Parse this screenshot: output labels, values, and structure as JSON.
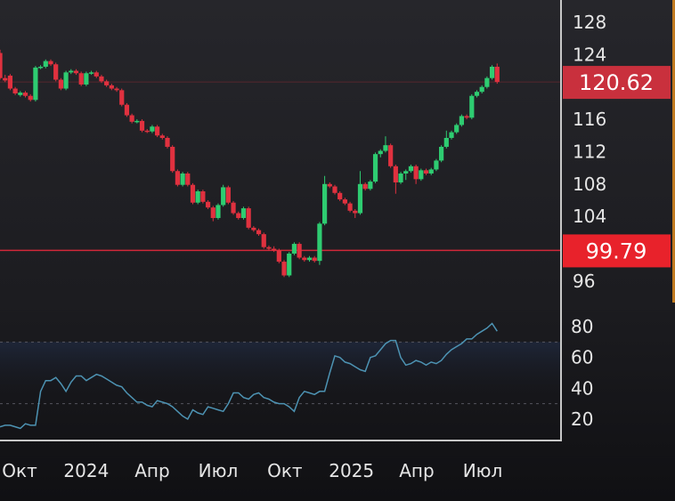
{
  "chart_data": [
    {
      "type": "candlestick",
      "title": "",
      "interval": "week",
      "y_ticks": [
        128,
        124,
        116,
        112,
        108,
        104,
        96
      ],
      "ylim": [
        94,
        130
      ],
      "x_range": [
        "2023-09-04",
        "2025-07-21"
      ],
      "x_ticks": [
        {
          "date": "2023-10-01",
          "label": "Окт"
        },
        {
          "date": "2024-01-01",
          "label": "2024"
        },
        {
          "date": "2024-04-01",
          "label": "Апр"
        },
        {
          "date": "2024-07-01",
          "label": "Июл"
        },
        {
          "date": "2024-10-01",
          "label": "Окт"
        },
        {
          "date": "2025-01-01",
          "label": "2025"
        },
        {
          "date": "2025-04-01",
          "label": "Апр"
        },
        {
          "date": "2025-07-01",
          "label": "Июл"
        }
      ],
      "price_tags": [
        {
          "value": 120.62,
          "label": "120.62",
          "color": "#c9303d"
        },
        {
          "value": 99.79,
          "label": "99.79",
          "color": "#e8222b"
        }
      ],
      "horizontal_lines": [
        99.79
      ],
      "colors": {
        "up": "#2ecc71",
        "down": "#e0313f",
        "rsi": "#4d93b3",
        "background": "#1e1e22",
        "border": "#c8c8c8"
      },
      "dates": [
        "2023-09-04",
        "2023-09-11",
        "2023-09-18",
        "2023-09-25",
        "2023-10-02",
        "2023-10-09",
        "2023-10-16",
        "2023-10-23",
        "2023-10-30",
        "2023-11-06",
        "2023-11-13",
        "2023-11-20",
        "2023-11-27",
        "2023-12-04",
        "2023-12-11",
        "2023-12-18",
        "2023-12-25",
        "2024-01-01",
        "2024-01-08",
        "2024-01-15",
        "2024-01-22",
        "2024-01-29",
        "2024-02-05",
        "2024-02-12",
        "2024-02-19",
        "2024-02-26",
        "2024-03-04",
        "2024-03-11",
        "2024-03-18",
        "2024-03-25",
        "2024-04-01",
        "2024-04-08",
        "2024-04-15",
        "2024-04-22",
        "2024-04-29",
        "2024-05-06",
        "2024-05-13",
        "2024-05-20",
        "2024-05-27",
        "2024-06-03",
        "2024-06-10",
        "2024-06-17",
        "2024-06-24",
        "2024-07-01",
        "2024-07-08",
        "2024-07-15",
        "2024-07-22",
        "2024-07-29",
        "2024-08-05",
        "2024-08-12",
        "2024-08-19",
        "2024-08-26",
        "2024-09-02",
        "2024-09-09",
        "2024-09-16",
        "2024-09-23",
        "2024-09-30",
        "2024-10-07",
        "2024-10-14",
        "2024-10-21",
        "2024-10-28",
        "2024-11-04",
        "2024-11-11",
        "2024-11-18",
        "2024-11-25",
        "2024-12-02",
        "2024-12-09",
        "2024-12-16",
        "2024-12-23",
        "2024-12-30",
        "2025-01-06",
        "2025-01-13",
        "2025-01-20",
        "2025-01-27",
        "2025-02-03",
        "2025-02-10",
        "2025-02-17",
        "2025-02-24",
        "2025-03-03",
        "2025-03-10",
        "2025-03-17",
        "2025-03-24",
        "2025-03-31",
        "2025-04-07",
        "2025-04-14",
        "2025-04-21",
        "2025-04-28",
        "2025-05-05",
        "2025-05-12",
        "2025-05-19",
        "2025-05-26",
        "2025-06-02",
        "2025-06-09",
        "2025-06-16",
        "2025-06-23",
        "2025-06-30",
        "2025-07-07",
        "2025-07-14",
        "2025-07-21"
      ],
      "ohlc": [
        [
          124.2,
          124.6,
          120.9,
          121.1
        ],
        [
          121.1,
          121.5,
          120.6,
          120.8
        ],
        [
          121.4,
          121.6,
          119.6,
          119.8
        ],
        [
          119.8,
          120.0,
          119.0,
          119.2
        ],
        [
          119.0,
          119.5,
          118.8,
          119.3
        ],
        [
          119.3,
          119.5,
          118.7,
          118.9
        ],
        [
          118.9,
          119.1,
          118.2,
          118.4
        ],
        [
          118.4,
          122.6,
          118.2,
          122.4
        ],
        [
          122.4,
          122.7,
          122.2,
          122.5
        ],
        [
          122.5,
          123.4,
          122.3,
          123.2
        ],
        [
          123.2,
          123.4,
          122.6,
          122.8
        ],
        [
          122.8,
          123.0,
          120.7,
          120.9
        ],
        [
          120.9,
          121.1,
          119.6,
          119.8
        ],
        [
          119.8,
          122.0,
          119.6,
          121.8
        ],
        [
          121.8,
          122.2,
          121.6,
          122.0
        ],
        [
          122.0,
          122.2,
          121.5,
          121.7
        ],
        [
          121.7,
          121.9,
          120.1,
          120.3
        ],
        [
          120.3,
          121.9,
          120.1,
          121.7
        ],
        [
          121.7,
          122.0,
          121.5,
          121.8
        ],
        [
          121.8,
          122.0,
          121.1,
          121.3
        ],
        [
          121.3,
          121.5,
          120.5,
          120.7
        ],
        [
          120.7,
          120.9,
          120.0,
          120.2
        ],
        [
          120.2,
          120.4,
          119.6,
          119.8
        ],
        [
          119.8,
          120.0,
          119.4,
          119.6
        ],
        [
          119.6,
          119.8,
          117.6,
          117.8
        ],
        [
          117.8,
          118.0,
          116.3,
          116.5
        ],
        [
          116.5,
          116.7,
          115.5,
          115.7
        ],
        [
          115.7,
          116.0,
          115.5,
          115.8
        ],
        [
          115.8,
          116.0,
          114.4,
          114.6
        ],
        [
          114.6,
          114.8,
          114.3,
          114.5
        ],
        [
          114.5,
          115.3,
          114.3,
          115.1
        ],
        [
          115.1,
          115.3,
          113.8,
          114.0
        ],
        [
          114.0,
          114.2,
          113.5,
          113.7
        ],
        [
          113.7,
          113.9,
          112.4,
          112.6
        ],
        [
          112.6,
          112.8,
          109.4,
          109.6
        ],
        [
          109.6,
          109.8,
          107.7,
          107.9
        ],
        [
          107.9,
          109.5,
          107.7,
          109.3
        ],
        [
          109.3,
          109.5,
          107.7,
          107.9
        ],
        [
          107.9,
          108.1,
          105.5,
          105.7
        ],
        [
          105.7,
          107.3,
          105.5,
          107.1
        ],
        [
          107.1,
          107.3,
          105.6,
          105.8
        ],
        [
          105.8,
          106.0,
          104.9,
          105.1
        ],
        [
          105.1,
          105.3,
          103.4,
          103.8
        ],
        [
          103.8,
          105.6,
          103.6,
          105.4
        ],
        [
          105.4,
          107.9,
          105.2,
          107.6
        ],
        [
          107.6,
          107.8,
          105.5,
          105.7
        ],
        [
          105.7,
          105.9,
          104.2,
          104.4
        ],
        [
          104.4,
          104.6,
          103.6,
          103.8
        ],
        [
          103.8,
          105.2,
          103.6,
          105.0
        ],
        [
          105.0,
          105.2,
          102.4,
          102.6
        ],
        [
          102.6,
          102.8,
          102.1,
          102.3
        ],
        [
          102.3,
          102.5,
          101.6,
          101.8
        ],
        [
          101.8,
          102.0,
          100.0,
          100.2
        ],
        [
          100.2,
          100.4,
          99.8,
          100.0
        ],
        [
          100.0,
          100.3,
          99.6,
          99.8
        ],
        [
          99.8,
          100.0,
          98.2,
          98.4
        ],
        [
          98.4,
          98.6,
          96.5,
          96.7
        ],
        [
          96.7,
          99.6,
          96.5,
          99.4
        ],
        [
          99.4,
          100.8,
          99.2,
          100.6
        ],
        [
          100.6,
          100.8,
          98.7,
          98.9
        ],
        [
          98.9,
          99.1,
          98.4,
          98.6
        ],
        [
          98.6,
          99.1,
          98.4,
          98.9
        ],
        [
          98.9,
          99.1,
          98.3,
          98.5
        ],
        [
          98.5,
          103.3,
          98.0,
          103.1
        ],
        [
          103.1,
          109.0,
          102.9,
          108.0
        ],
        [
          108.0,
          108.2,
          107.5,
          107.7
        ],
        [
          107.7,
          107.9,
          106.7,
          106.9
        ],
        [
          106.9,
          107.1,
          105.9,
          106.1
        ],
        [
          106.1,
          106.3,
          105.4,
          105.6
        ],
        [
          105.6,
          105.8,
          104.5,
          104.7
        ],
        [
          104.7,
          104.9,
          103.8,
          104.4
        ],
        [
          104.4,
          109.6,
          104.2,
          108.0
        ],
        [
          108.0,
          108.2,
          107.2,
          107.4
        ],
        [
          107.4,
          108.5,
          107.2,
          108.3
        ],
        [
          108.3,
          111.9,
          108.1,
          111.7
        ],
        [
          111.7,
          112.3,
          111.3,
          112.1
        ],
        [
          112.1,
          113.9,
          111.9,
          112.8
        ],
        [
          112.8,
          113.0,
          110.0,
          110.2
        ],
        [
          110.2,
          110.4,
          106.8,
          108.2
        ],
        [
          108.2,
          109.5,
          108.0,
          109.3
        ],
        [
          109.3,
          109.8,
          108.5,
          109.6
        ],
        [
          109.6,
          110.4,
          109.4,
          110.2
        ],
        [
          110.2,
          110.4,
          108.0,
          108.6
        ],
        [
          108.6,
          109.9,
          108.4,
          109.7
        ],
        [
          109.7,
          109.9,
          109.1,
          109.3
        ],
        [
          109.3,
          110.0,
          109.1,
          109.8
        ],
        [
          109.8,
          111.1,
          109.6,
          110.9
        ],
        [
          110.9,
          112.8,
          110.7,
          112.6
        ],
        [
          112.6,
          114.6,
          112.4,
          113.7
        ],
        [
          113.7,
          114.6,
          113.5,
          114.4
        ],
        [
          114.4,
          115.5,
          114.2,
          115.3
        ],
        [
          115.3,
          116.6,
          115.1,
          116.4
        ],
        [
          116.4,
          116.6,
          116.0,
          116.2
        ],
        [
          116.2,
          119.1,
          116.0,
          118.9
        ],
        [
          118.9,
          119.6,
          118.7,
          119.4
        ],
        [
          119.4,
          120.2,
          119.2,
          120.0
        ],
        [
          120.0,
          121.3,
          119.8,
          121.1
        ],
        [
          121.1,
          122.7,
          120.9,
          122.5
        ],
        [
          122.5,
          122.9,
          120.4,
          120.62
        ]
      ]
    },
    {
      "type": "line",
      "title": "",
      "y_ticks": [
        80,
        60,
        40,
        20
      ],
      "ylim": [
        10,
        90
      ],
      "reference_lines": [
        70,
        30
      ],
      "values": [
        15,
        16,
        16,
        15,
        14,
        17,
        16,
        16,
        38,
        45,
        45,
        47,
        43,
        38,
        44,
        48,
        48,
        45,
        47,
        49,
        48,
        46,
        44,
        42,
        41,
        37,
        34,
        31,
        31,
        29,
        28,
        32,
        31,
        30,
        28,
        25,
        22,
        20,
        26,
        24,
        23,
        28,
        27,
        26,
        25,
        30,
        37,
        37,
        34,
        33,
        36,
        37,
        34,
        33,
        31,
        30,
        30,
        28,
        25,
        34,
        38,
        37,
        36,
        38,
        38,
        50,
        61,
        60,
        57,
        56,
        54,
        52,
        51,
        60,
        61,
        65,
        69,
        71,
        71,
        60,
        55,
        56,
        58,
        57,
        55,
        57,
        56,
        58,
        62,
        65,
        67,
        69,
        72,
        72,
        75,
        77,
        79,
        82,
        77
      ]
    }
  ]
}
